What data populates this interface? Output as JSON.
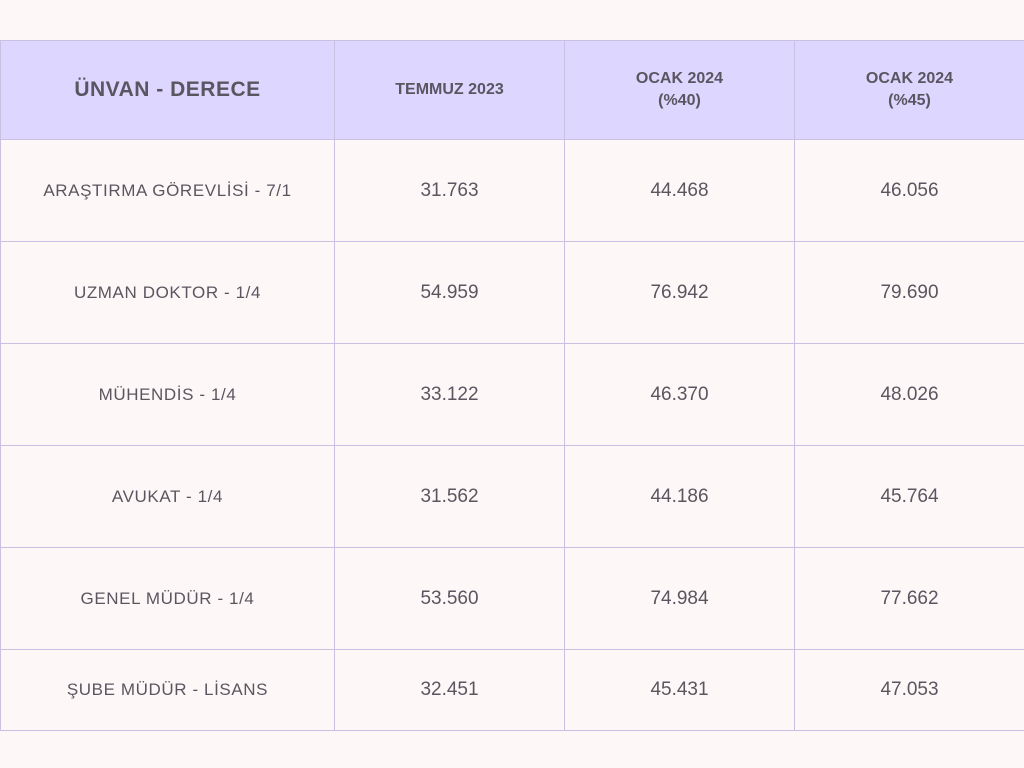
{
  "table": {
    "headers": [
      {
        "line1": "ÜNVAN - DERECE",
        "line2": ""
      },
      {
        "line1": "TEMMUZ 2023",
        "line2": ""
      },
      {
        "line1": "OCAK 2024",
        "line2": "(%40)"
      },
      {
        "line1": "OCAK 2024",
        "line2": "(%45)"
      }
    ],
    "rows": [
      {
        "title": "ARAŞTIRMA GÖREVLİSİ - 7/1",
        "temmuz_2023": "31.763",
        "ocak_2024_40": "44.468",
        "ocak_2024_45": "46.056"
      },
      {
        "title": "UZMAN DOKTOR - 1/4",
        "temmuz_2023": "54.959",
        "ocak_2024_40": "76.942",
        "ocak_2024_45": "79.690"
      },
      {
        "title": "MÜHENDİS - 1/4",
        "temmuz_2023": "33.122",
        "ocak_2024_40": "46.370",
        "ocak_2024_45": "48.026"
      },
      {
        "title": "AVUKAT - 1/4",
        "temmuz_2023": "31.562",
        "ocak_2024_40": "44.186",
        "ocak_2024_45": "45.764"
      },
      {
        "title": "GENEL MÜDÜR - 1/4",
        "temmuz_2023": "53.560",
        "ocak_2024_40": "74.984",
        "ocak_2024_45": "77.662"
      },
      {
        "title": "ŞUBE MÜDÜR - LİSANS",
        "temmuz_2023": "32.451",
        "ocak_2024_40": "45.431",
        "ocak_2024_45": "47.053"
      }
    ]
  }
}
